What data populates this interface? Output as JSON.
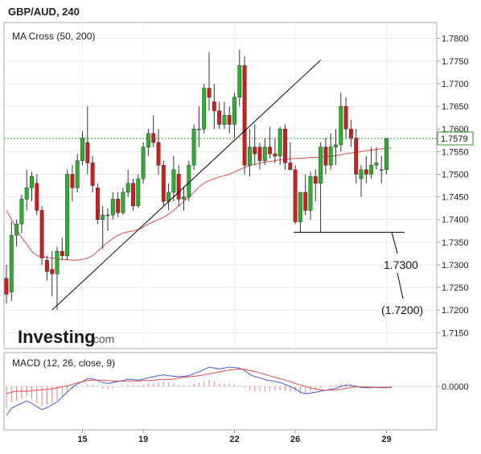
{
  "header": {
    "title": "GBP/AUD, 240"
  },
  "chart_data": [
    {
      "type": "candlestick",
      "title": "GBP/AUD, 240",
      "indicator_label": "MA Cross (50, 200)",
      "watermark": {
        "brand": "Investing",
        "suffix": ".com"
      },
      "y_ticks": [
        "1.7800",
        "1.7750",
        "1.7700",
        "1.7650",
        "1.7600",
        "1.7550",
        "1.7500",
        "1.7450",
        "1.7400",
        "1.7350",
        "1.7300",
        "1.7250",
        "1.7200",
        "1.7150"
      ],
      "ylim": [
        1.7115,
        1.7835
      ],
      "x_ticks": [
        {
          "label": "15",
          "bar": 15
        },
        {
          "label": "19",
          "bar": 27
        },
        {
          "label": "22",
          "bar": 45
        },
        {
          "label": "26",
          "bar": 57
        },
        {
          "label": "29",
          "bar": 75
        }
      ],
      "last_price": "1.7579",
      "last_price_value": 1.7579,
      "annotations": [
        {
          "label": "1.7300",
          "value": 1.73
        },
        {
          "label": "(1.7200)",
          "value": 1.72
        }
      ],
      "support_level": 1.7372,
      "colors": {
        "up": "#28b428",
        "down": "#d61a1a",
        "ma": "#e84a4a",
        "trend": "#000000",
        "last_price_line": "#2a9a2a",
        "macd": "#4a5ae0",
        "signal": "#e84a4a",
        "hist": "#e08080"
      },
      "candles": [
        [
          1.727,
          1.73,
          1.7215,
          1.7235
        ],
        [
          1.724,
          1.7395,
          1.722,
          1.7365
        ],
        [
          1.7365,
          1.74,
          1.734,
          1.739
        ],
        [
          1.739,
          1.7455,
          1.737,
          1.7445
        ],
        [
          1.7445,
          1.751,
          1.742,
          1.747
        ],
        [
          1.747,
          1.7505,
          1.744,
          1.7495
        ],
        [
          1.748,
          1.75,
          1.741,
          1.742
        ],
        [
          1.742,
          1.743,
          1.73,
          1.7315
        ],
        [
          1.731,
          1.732,
          1.7265,
          1.7285
        ],
        [
          1.729,
          1.733,
          1.723,
          1.728
        ],
        [
          1.728,
          1.734,
          1.72,
          1.733
        ],
        [
          1.733,
          1.736,
          1.731,
          1.732
        ],
        [
          1.732,
          1.751,
          1.731,
          1.75
        ],
        [
          1.75,
          1.752,
          1.744,
          1.747
        ],
        [
          1.747,
          1.7545,
          1.746,
          1.753
        ],
        [
          1.753,
          1.7595,
          1.752,
          1.758
        ],
        [
          1.757,
          1.765,
          1.75,
          1.7525
        ],
        [
          1.7525,
          1.754,
          1.746,
          1.7475
        ],
        [
          1.747,
          1.748,
          1.739,
          1.74
        ],
        [
          1.74,
          1.743,
          1.7335,
          1.741
        ],
        [
          1.741,
          1.7425,
          1.7375,
          1.741
        ],
        [
          1.741,
          1.746,
          1.74,
          1.7445
        ],
        [
          1.7445,
          1.746,
          1.7405,
          1.7415
        ],
        [
          1.7415,
          1.747,
          1.741,
          1.746
        ],
        [
          1.746,
          1.751,
          1.745,
          1.748
        ],
        [
          1.748,
          1.749,
          1.742,
          1.743
        ],
        [
          1.743,
          1.75,
          1.7425,
          1.749
        ],
        [
          1.749,
          1.757,
          1.748,
          1.756
        ],
        [
          1.756,
          1.76,
          1.754,
          1.759
        ],
        [
          1.759,
          1.763,
          1.756,
          1.757
        ],
        [
          1.757,
          1.76,
          1.75,
          1.752
        ],
        [
          1.752,
          1.753,
          1.743,
          1.744
        ],
        [
          1.744,
          1.748,
          1.742,
          1.746
        ],
        [
          1.746,
          1.754,
          1.744,
          1.751
        ],
        [
          1.75,
          1.752,
          1.743,
          1.7445
        ],
        [
          1.7445,
          1.747,
          1.742,
          1.745
        ],
        [
          1.745,
          1.753,
          1.744,
          1.752
        ],
        [
          1.752,
          1.761,
          1.751,
          1.76
        ],
        [
          1.76,
          1.765,
          1.756,
          1.76
        ],
        [
          1.76,
          1.77,
          1.759,
          1.769
        ],
        [
          1.769,
          1.777,
          1.764,
          1.767
        ],
        [
          1.766,
          1.77,
          1.76,
          1.764
        ],
        [
          1.764,
          1.766,
          1.76,
          1.761
        ],
        [
          1.761,
          1.766,
          1.76,
          1.763
        ],
        [
          1.763,
          1.765,
          1.759,
          1.761
        ],
        [
          1.761,
          1.768,
          1.758,
          1.767
        ],
        [
          1.767,
          1.7775,
          1.765,
          1.774
        ],
        [
          1.774,
          1.776,
          1.75,
          1.752
        ],
        [
          1.752,
          1.76,
          1.7495,
          1.756
        ],
        [
          1.756,
          1.761,
          1.752,
          1.7545
        ],
        [
          1.756,
          1.757,
          1.751,
          1.753
        ],
        [
          1.753,
          1.758,
          1.752,
          1.756
        ],
        [
          1.756,
          1.7605,
          1.7535,
          1.7545
        ],
        [
          1.7545,
          1.758,
          1.7525,
          1.754
        ],
        [
          1.754,
          1.7605,
          1.752,
          1.76
        ],
        [
          1.76,
          1.761,
          1.751,
          1.7525
        ],
        [
          1.7525,
          1.757,
          1.751,
          1.751
        ],
        [
          1.751,
          1.752,
          1.739,
          1.7395
        ],
        [
          1.7395,
          1.746,
          1.7372,
          1.746
        ],
        [
          1.746,
          1.75,
          1.741,
          1.742
        ],
        [
          1.742,
          1.7505,
          1.74,
          1.7495
        ],
        [
          1.7495,
          1.751,
          1.744,
          1.748
        ],
        [
          1.748,
          1.757,
          1.7372,
          1.756
        ],
        [
          1.756,
          1.758,
          1.75,
          1.752
        ],
        [
          1.752,
          1.759,
          1.751,
          1.756
        ],
        [
          1.756,
          1.76,
          1.752,
          1.7565
        ],
        [
          1.7565,
          1.768,
          1.755,
          1.765
        ],
        [
          1.765,
          1.767,
          1.758,
          1.76
        ],
        [
          1.76,
          1.762,
          1.756,
          1.758
        ],
        [
          1.758,
          1.76,
          1.748,
          1.75
        ],
        [
          1.749,
          1.752,
          1.745,
          1.751
        ],
        [
          1.751,
          1.754,
          1.748,
          1.75
        ],
        [
          1.75,
          1.756,
          1.749,
          1.752
        ],
        [
          1.752,
          1.756,
          1.751,
          1.7525
        ],
        [
          1.751,
          1.754,
          1.748,
          1.751
        ],
        [
          1.751,
          1.758,
          1.75,
          1.7579
        ]
      ],
      "ma_line": [
        1.742,
        1.74,
        1.738,
        1.736,
        1.7345,
        1.733,
        1.732,
        1.7318,
        1.7316,
        1.7315,
        1.7313,
        1.7312,
        1.7311,
        1.731,
        1.731,
        1.7312,
        1.7315,
        1.732,
        1.733,
        1.734,
        1.735,
        1.7358,
        1.7365,
        1.737,
        1.7373,
        1.7375,
        1.7378,
        1.7383,
        1.739,
        1.7395,
        1.74,
        1.7405,
        1.7412,
        1.742,
        1.743,
        1.744,
        1.745,
        1.746,
        1.7472,
        1.748,
        1.7486,
        1.749,
        1.7494,
        1.7497,
        1.75,
        1.7505,
        1.751,
        1.7515,
        1.7519,
        1.7522,
        1.7525,
        1.7527,
        1.7528,
        1.753,
        1.7532,
        1.7533,
        1.7534,
        1.7535,
        1.7535,
        1.7536,
        1.7537,
        1.7537,
        1.7538,
        1.7539,
        1.754,
        1.7541,
        1.7543,
        1.7545,
        1.7547,
        1.7548,
        1.755,
        1.7552,
        1.7553,
        1.7555,
        1.7556,
        1.7557,
        1.7558
      ]
    },
    {
      "type": "line",
      "title": "MACD (12, 26, close, 9)",
      "y_ticks": [
        "0.0000"
      ],
      "ylim": [
        -0.009,
        0.007
      ],
      "macd": [
        -0.006,
        -0.0045,
        -0.004,
        -0.0035,
        -0.003,
        -0.0035,
        -0.0042,
        -0.0048,
        -0.0044,
        -0.0038,
        -0.0032,
        -0.0022,
        -0.0012,
        -0.0002,
        0.0005,
        0.001,
        0.0016,
        0.0016,
        0.0012,
        0.0008,
        0.0006,
        0.0008,
        0.001,
        0.0012,
        0.0015,
        0.0014,
        0.0013,
        0.0015,
        0.0018,
        0.002,
        0.0022,
        0.0024,
        0.0022,
        0.0021,
        0.002,
        0.0021,
        0.0022,
        0.0027,
        0.003,
        0.0035,
        0.004,
        0.0038,
        0.0036,
        0.0038,
        0.004,
        0.0039,
        0.0038,
        0.0033,
        0.0025,
        0.002,
        0.0018,
        0.0014,
        0.0012,
        0.001,
        0.0008,
        0.0004,
        0.0,
        -0.0005,
        -0.0012,
        -0.0015,
        -0.0014,
        -0.0012,
        -0.001,
        -0.0008,
        -0.0006,
        -0.0004,
        0.0,
        0.0002,
        0.0002,
        0.0,
        -0.0002,
        -0.0003,
        -0.0003,
        -0.0002,
        -0.0003,
        -0.0003,
        -0.0001
      ],
      "signal": [
        -0.0015,
        -0.0012,
        -0.001,
        -0.001,
        -0.001,
        -0.0009,
        -0.0008,
        -0.0007,
        -0.0006,
        -0.0005,
        -0.0003,
        -0.0001,
        0.0001,
        0.0004,
        0.0007,
        0.001,
        0.0012,
        0.0013,
        0.0013,
        0.0013,
        0.0012,
        0.0011,
        0.0011,
        0.0011,
        0.0011,
        0.0011,
        0.0011,
        0.0012,
        0.0012,
        0.0013,
        0.0014,
        0.0014,
        0.0014,
        0.0015,
        0.0017,
        0.0019,
        0.002,
        0.0021,
        0.0022,
        0.0024,
        0.0026,
        0.0028,
        0.003,
        0.0032,
        0.0034,
        0.0035,
        0.0036,
        0.0035,
        0.0033,
        0.0031,
        0.0028,
        0.0025,
        0.0022,
        0.0019,
        0.0016,
        0.0013,
        0.001,
        0.0006,
        0.0003,
        0.0,
        -0.0003,
        -0.0006,
        -0.0007,
        -0.0008,
        -0.0008,
        -0.0007,
        -0.0006,
        -0.0004,
        -0.0002,
        -0.0001,
        -0.0001,
        -0.0001,
        -0.0002,
        -0.0002,
        -0.0002,
        -0.0002,
        -0.0002
      ]
    }
  ]
}
